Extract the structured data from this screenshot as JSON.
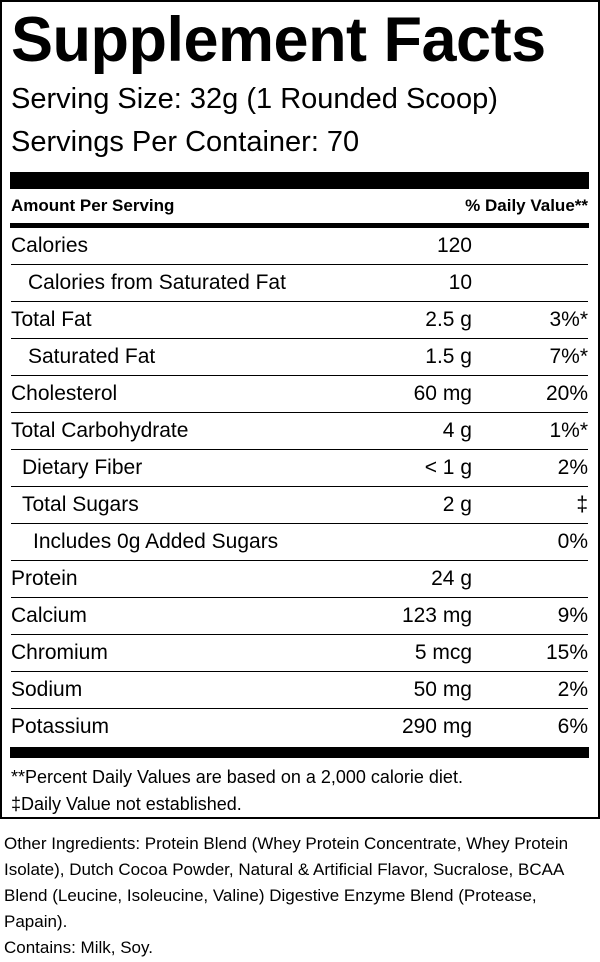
{
  "header": {
    "title": "Supplement Facts",
    "serving_size": "Serving Size: 32g (1 Rounded Scoop)",
    "servings_per_container": "Servings Per Container: 70"
  },
  "table": {
    "columns": [
      "Amount Per Serving",
      "% Daily Value**"
    ],
    "rows": [
      [
        "Calories",
        "120",
        null
      ],
      [
        "Calories from Saturated Fat",
        "10",
        null
      ],
      [
        "Total Fat",
        "2.5 g",
        "3%*"
      ],
      [
        "Saturated Fat",
        "1.5 g",
        "7%*"
      ],
      [
        "Cholesterol",
        "60 mg",
        "20%"
      ],
      [
        "Total Carbohydrate",
        "4 g",
        "1%*"
      ],
      [
        "Dietary Fiber",
        "< 1 g",
        "2%"
      ],
      [
        "Total Sugars",
        "2 g",
        "‡"
      ],
      [
        "Includes 0g Added Sugars",
        null,
        "0%"
      ],
      [
        "Protein",
        "24 g",
        null
      ],
      [
        "Calcium",
        "123 mg",
        "9%"
      ],
      [
        "Chromium",
        "5 mcg",
        "15%"
      ],
      [
        "Sodium",
        "50 mg",
        "2%"
      ],
      [
        "Potassium",
        "290 mg",
        "6%"
      ]
    ]
  },
  "footnotes": [
    "**Percent Daily Values are based on a 2,000 calorie diet.",
    "‡Daily Value not established."
  ],
  "other_ingredients": "Other Ingredients: Protein Blend (Whey Protein Concentrate, Whey Protein Isolate), Dutch Cocoa Powder, Natural & Artificial Flavor, Sucralose, BCAA Blend (Leucine, Isoleucine, Valine) Digestive Enzyme Blend (Protease, Papain).",
  "contains": "Contains: Milk, Soy."
}
